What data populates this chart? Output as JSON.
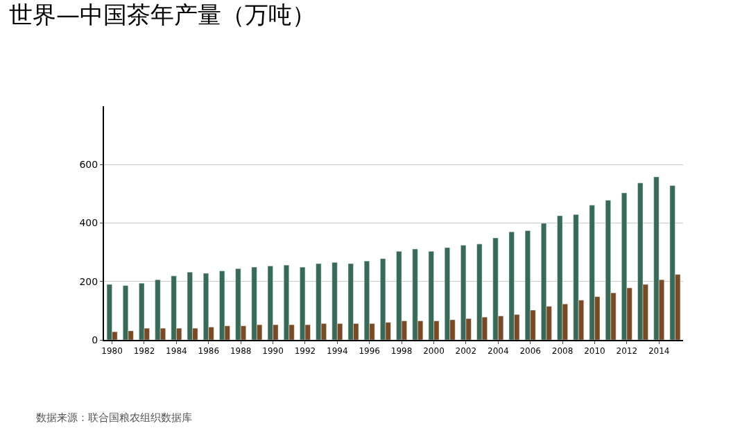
{
  "chart_data": {
    "type": "bar",
    "title": "世界—中国茶年产量（万吨）",
    "categories": [
      "1980",
      null,
      "1982",
      null,
      "1984",
      null,
      "1986",
      null,
      "1988",
      null,
      "1990",
      null,
      "1992",
      null,
      "1994",
      null,
      "1996",
      null,
      "1998",
      null,
      "2000",
      null,
      "2002",
      null,
      "2004",
      null,
      "2006",
      null,
      "2008",
      null,
      "2010",
      null,
      "2012",
      null,
      "2014",
      null
    ],
    "series": [
      {
        "color": "#376b58",
        "values": [
          190,
          186,
          194,
          206,
          219,
          232,
          228,
          236,
          244,
          249,
          253,
          256,
          249,
          261,
          265,
          261,
          270,
          278,
          303,
          311,
          303,
          316,
          324,
          328,
          349,
          370,
          374,
          399,
          425,
          429,
          461,
          478,
          503,
          537,
          558,
          528
        ]
      },
      {
        "color": "#7b4a22",
        "values": [
          28,
          31,
          40,
          40,
          40,
          40,
          44,
          48,
          48,
          52,
          52,
          52,
          52,
          56,
          56,
          56,
          56,
          60,
          65,
          65,
          65,
          69,
          73,
          78,
          82,
          87,
          102,
          115,
          123,
          136,
          148,
          161,
          178,
          190,
          206,
          224
        ]
      }
    ],
    "ylim": [
      0,
      800
    ],
    "yticks": [
      0,
      200,
      400,
      600
    ],
    "grid": "y",
    "annotations": [
      "数据来源：联合国粮农组织数据库"
    ]
  }
}
